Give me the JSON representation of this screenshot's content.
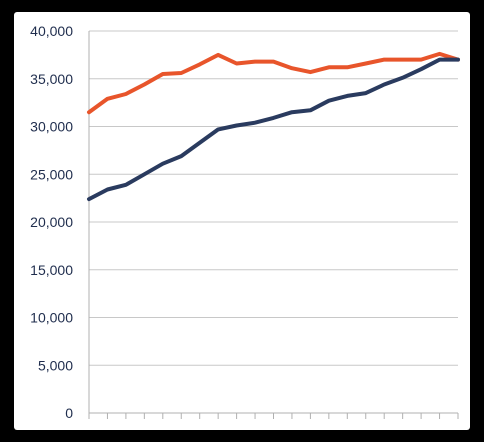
{
  "chart_data": {
    "type": "line",
    "title": "",
    "xlabel": "",
    "ylabel": "",
    "ylim": [
      0,
      40000
    ],
    "y_ticks": [
      0,
      5000,
      10000,
      15000,
      20000,
      25000,
      30000,
      35000,
      40000
    ],
    "y_tick_labels": [
      "0",
      "5,000",
      "10,000",
      "15,000",
      "20,000",
      "25,000",
      "30,000",
      "35,000",
      "40,000"
    ],
    "x": [
      1,
      2,
      3,
      4,
      5,
      6,
      7,
      8,
      9,
      10,
      11,
      12,
      13,
      14,
      15,
      16,
      17,
      18,
      19,
      20,
      21
    ],
    "grid": "horizontal",
    "legend": "none",
    "series": [
      {
        "color": "#e8552b",
        "values": [
          31500,
          32900,
          33400,
          34400,
          35500,
          35600,
          36500,
          37500,
          36600,
          36800,
          36800,
          36100,
          35700,
          36200,
          36200,
          36600,
          37000,
          37000,
          37000,
          37600,
          37000
        ]
      },
      {
        "color": "#2a3b5f",
        "values": [
          22400,
          23400,
          23900,
          25000,
          26100,
          26900,
          28300,
          29700,
          30100,
          30400,
          30900,
          31500,
          31700,
          32700,
          33200,
          33500,
          34400,
          35100,
          36000,
          37000,
          37000
        ]
      }
    ]
  }
}
